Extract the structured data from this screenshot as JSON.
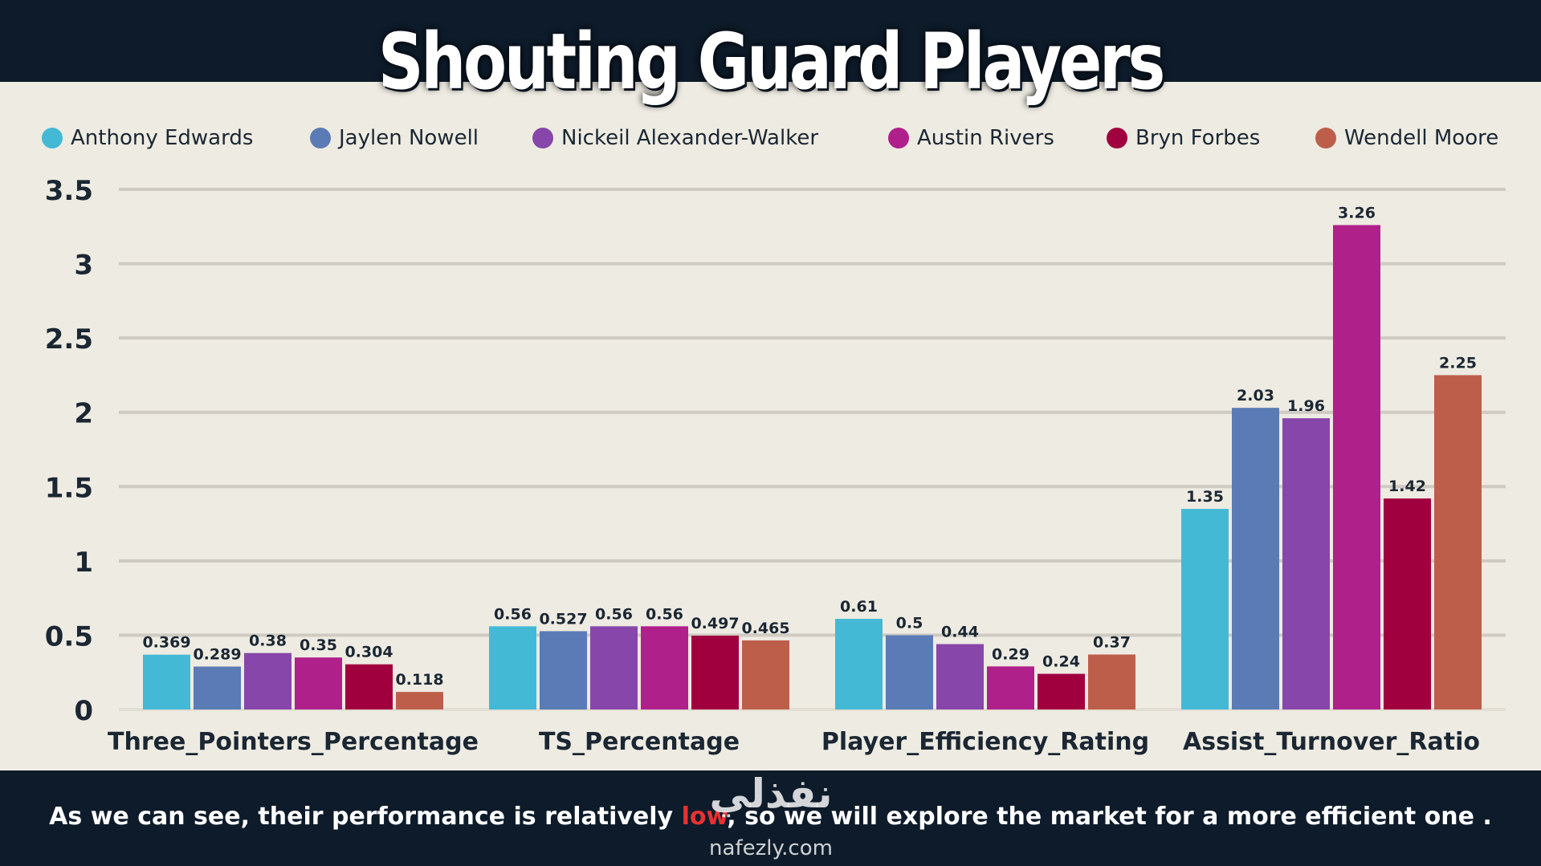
{
  "title": "Shouting Guard Players",
  "caption": {
    "before": "As we can see, their performance is relatively ",
    "highlight": "low",
    "after": ", so we will explore the market for a more efficient one ."
  },
  "watermark": {
    "arabic": "نفذلي",
    "url": "nafezly.com"
  },
  "colors": {
    "background": "#eeebe2",
    "band": "#0d1b2a",
    "highlight": "#e63232"
  },
  "chart_data": {
    "type": "bar",
    "title": "Shouting Guard Players",
    "xlabel": "",
    "ylabel": "",
    "ylim": [
      0,
      3.5
    ],
    "yticks": [
      "0",
      "0.5",
      "1",
      "1.5",
      "2",
      "2.5",
      "3",
      "3.5"
    ],
    "grid": true,
    "legend_position": "top",
    "categories": [
      "Three_Pointers_Percentage",
      "TS_Percentage",
      "Player_Efficiency_Rating",
      "Assist_Turnover_Ratio"
    ],
    "series": [
      {
        "name": "Anthony Edwards",
        "color": "#44b9d6",
        "values": [
          0.369,
          0.56,
          0.61,
          1.35
        ],
        "labels": [
          "0.369",
          "0.56",
          "0.61",
          "1.35"
        ]
      },
      {
        "name": "Jaylen Nowell",
        "color": "#5a7bb5",
        "values": [
          0.289,
          0.527,
          0.5,
          2.03
        ],
        "labels": [
          "0.289",
          "0.527",
          "0.5",
          "2.03"
        ]
      },
      {
        "name": "Nickeil Alexander-Walker",
        "color": "#8746a9",
        "values": [
          0.38,
          0.56,
          0.44,
          1.96
        ],
        "labels": [
          "0.38",
          "0.56",
          "0.44",
          "1.96"
        ]
      },
      {
        "name": "Austin Rivers",
        "color": "#b0208a",
        "values": [
          0.35,
          0.56,
          0.29,
          3.26
        ],
        "labels": [
          "0.35",
          "0.56",
          "0.29",
          "3.26"
        ]
      },
      {
        "name": "Bryn Forbes",
        "color": "#a1003f",
        "values": [
          0.304,
          0.497,
          0.24,
          1.42
        ],
        "labels": [
          "0.304",
          "0.497",
          "0.24",
          "1.42"
        ]
      },
      {
        "name": "Wendell Moore",
        "color": "#bd5e4b",
        "values": [
          0.118,
          0.465,
          0.37,
          2.25
        ],
        "labels": [
          "0.118",
          "0.465",
          "0.37",
          "2.25"
        ]
      }
    ]
  }
}
